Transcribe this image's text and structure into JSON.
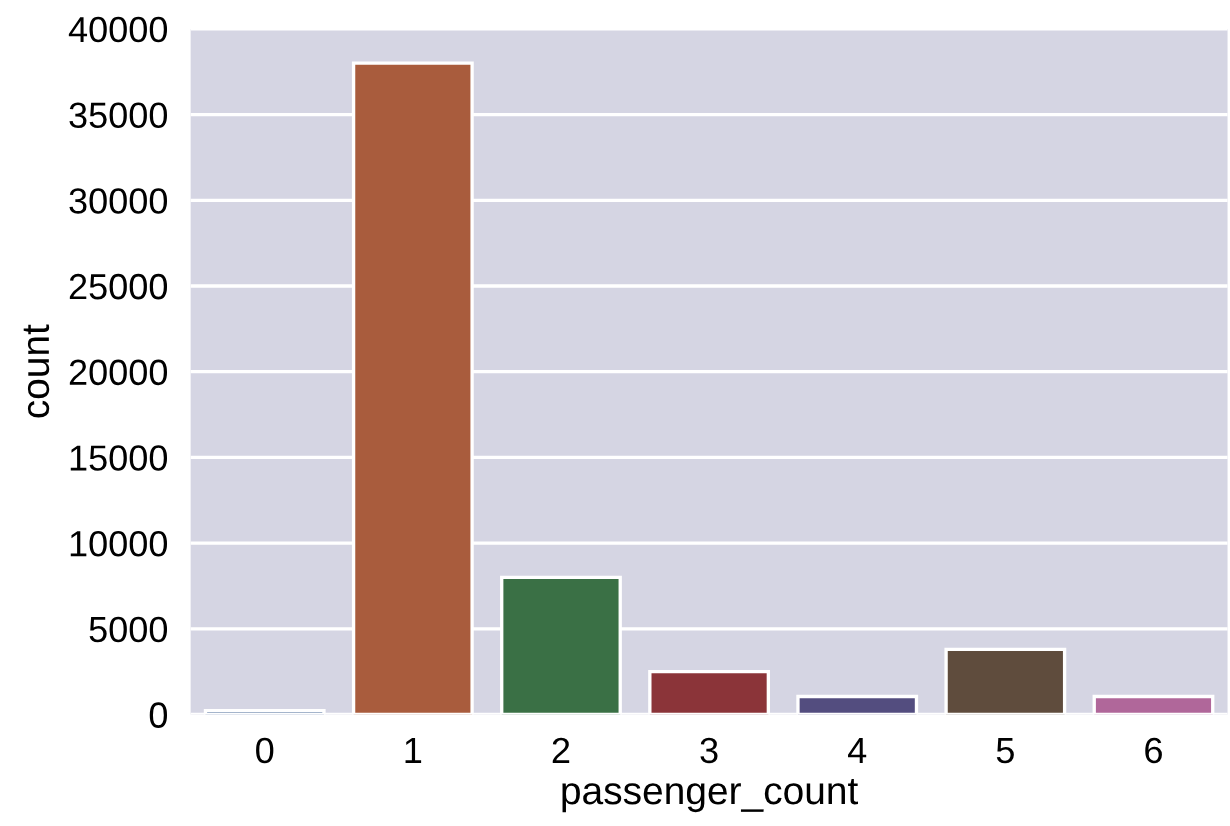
{
  "chart_data": {
    "type": "bar",
    "xlabel": "passenger_count",
    "ylabel": "count",
    "categories": [
      "0",
      "1",
      "2",
      "3",
      "4",
      "5",
      "6"
    ],
    "values": [
      230,
      38000,
      8000,
      2500,
      1050,
      3800,
      1050
    ],
    "colors": [
      "#4a6a99",
      "#a95c3d",
      "#3a7045",
      "#8b3439",
      "#534d7f",
      "#5f4c3d",
      "#b0679a"
    ],
    "ylim": [
      0,
      40000
    ],
    "yticks": [
      0,
      5000,
      10000,
      15000,
      20000,
      25000,
      30000,
      35000,
      40000
    ],
    "grid": "y"
  }
}
